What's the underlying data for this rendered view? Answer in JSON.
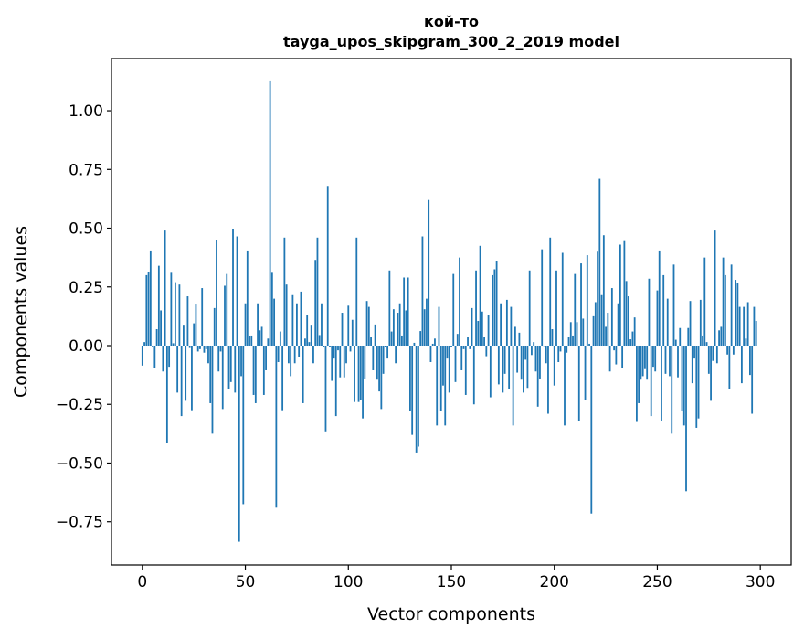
{
  "chart_data": {
    "type": "bar",
    "title_line1": "кой-то",
    "title_line2": "tayga_upos_skipgram_300_2_2019 model",
    "xlabel": "Vector components",
    "ylabel": "Components values",
    "xlim": [
      -15,
      315
    ],
    "ylim": [
      -0.934,
      1.222
    ],
    "xticks": [
      0,
      50,
      100,
      150,
      200,
      250,
      300
    ],
    "xtick_labels": [
      "0",
      "50",
      "100",
      "150",
      "200",
      "250",
      "300"
    ],
    "yticks": [
      -0.75,
      -0.5,
      -0.25,
      0,
      0.25,
      0.5,
      0.75,
      1.0
    ],
    "ytick_labels": [
      "−0.75",
      "−0.50",
      "−0.25",
      "0.00",
      "0.25",
      "0.50",
      "0.75",
      "1.00"
    ],
    "grid": false,
    "bar_color": "#1f77b4",
    "values": [
      -0.085,
      0.015,
      0.3,
      0.315,
      0.405,
      -0.005,
      -0.095,
      0.07,
      0.34,
      0.15,
      -0.11,
      0.49,
      -0.415,
      -0.09,
      0.31,
      0.01,
      0.27,
      -0.2,
      0.26,
      -0.3,
      0.085,
      -0.235,
      0.21,
      -0.01,
      -0.275,
      0.095,
      0.175,
      -0.025,
      -0.015,
      0.245,
      -0.03,
      -0.015,
      -0.075,
      -0.245,
      -0.375,
      0.16,
      0.45,
      -0.11,
      -0.025,
      -0.27,
      0.255,
      0.305,
      -0.185,
      -0.155,
      0.495,
      -0.2,
      0.465,
      -0.835,
      -0.13,
      -0.675,
      0.18,
      0.405,
      0.04,
      0.043,
      -0.21,
      -0.245,
      0.18,
      0.065,
      0.08,
      -0.21,
      -0.105,
      0.03,
      1.125,
      0.31,
      0.2,
      -0.69,
      -0.07,
      0.06,
      -0.275,
      0.46,
      0.26,
      -0.075,
      -0.13,
      0.215,
      -0.075,
      0.18,
      -0.05,
      0.23,
      -0.245,
      0.03,
      0.13,
      0.015,
      0.085,
      -0.075,
      0.365,
      0.46,
      0.045,
      0.18,
      -0.005,
      -0.365,
      0.68,
      -0.006,
      -0.15,
      -0.055,
      -0.3,
      -0.02,
      -0.135,
      0.14,
      -0.135,
      -0.075,
      0.17,
      -0.025,
      0.11,
      -0.24,
      0.46,
      -0.24,
      -0.23,
      -0.31,
      -0.14,
      0.19,
      0.165,
      0.035,
      -0.105,
      0.09,
      -0.145,
      -0.195,
      -0.27,
      -0.12,
      -0.004,
      -0.055,
      0.32,
      0.06,
      0.155,
      -0.075,
      0.14,
      0.18,
      0.043,
      0.29,
      0.15,
      0.29,
      -0.28,
      -0.38,
      0.012,
      -0.455,
      -0.43,
      0.062,
      0.465,
      0.155,
      0.2,
      0.62,
      -0.07,
      0.008,
      0.03,
      -0.34,
      0.165,
      -0.28,
      -0.17,
      -0.34,
      -0.055,
      -0.2,
      -0.004,
      0.305,
      -0.155,
      0.05,
      0.375,
      -0.105,
      -0.015,
      -0.21,
      0.035,
      -0.015,
      0.16,
      -0.25,
      0.32,
      0.105,
      0.425,
      0.145,
      0.035,
      -0.045,
      0.13,
      -0.22,
      0.3,
      0.325,
      0.36,
      -0.165,
      0.18,
      -0.2,
      -0.12,
      0.195,
      -0.185,
      0.165,
      -0.34,
      0.08,
      -0.115,
      0.055,
      -0.145,
      -0.2,
      -0.06,
      -0.18,
      0.32,
      -0.04,
      0.015,
      -0.11,
      -0.26,
      -0.14,
      0.41,
      -0.001,
      -0.075,
      -0.29,
      0.46,
      0.07,
      -0.17,
      0.32,
      -0.07,
      -0.025,
      0.395,
      -0.34,
      -0.03,
      0.035,
      0.1,
      0.043,
      0.305,
      0.1,
      -0.32,
      0.35,
      0.115,
      -0.23,
      0.385,
      0.008,
      -0.715,
      0.125,
      0.185,
      0.4,
      0.71,
      0.215,
      0.47,
      0.08,
      0.14,
      -0.11,
      0.245,
      -0.02,
      -0.08,
      0.18,
      0.43,
      -0.095,
      0.445,
      0.275,
      0.21,
      0.027,
      0.06,
      0.12,
      -0.325,
      -0.245,
      -0.145,
      -0.13,
      -0.1,
      -0.145,
      0.285,
      -0.3,
      -0.09,
      -0.11,
      0.235,
      0.405,
      -0.32,
      0.3,
      -0.12,
      0.2,
      -0.13,
      -0.375,
      0.345,
      0.025,
      -0.135,
      0.075,
      -0.28,
      -0.34,
      -0.62,
      0.075,
      0.19,
      -0.16,
      -0.055,
      -0.35,
      -0.31,
      0.195,
      0.043,
      0.375,
      0.015,
      -0.12,
      -0.235,
      -0.065,
      0.49,
      -0.075,
      0.065,
      0.08,
      0.375,
      0.3,
      -0.038,
      -0.185,
      0.345,
      -0.038,
      0.28,
      0.265,
      0.165,
      -0.16,
      0.165,
      0.03,
      0.185,
      -0.125,
      -0.29,
      0.165,
      0.105
    ]
  }
}
